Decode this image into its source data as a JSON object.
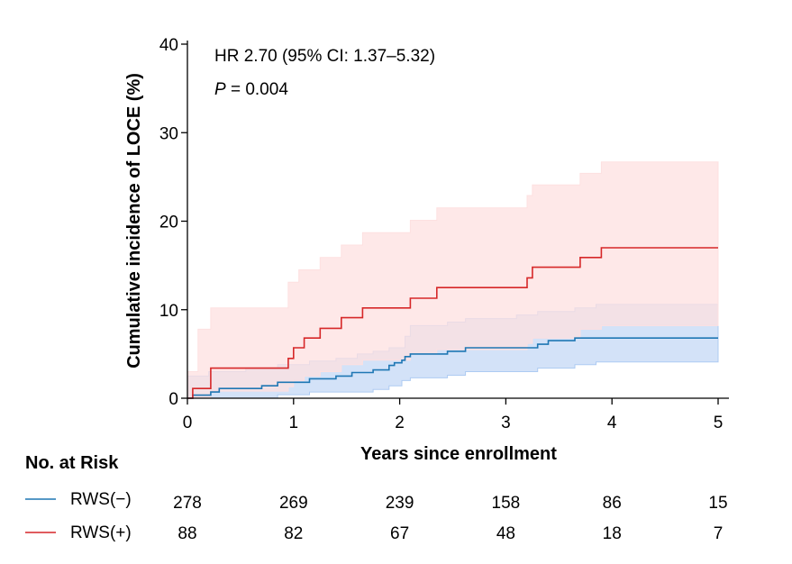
{
  "chart_data": {
    "type": "line",
    "title": "",
    "xlabel": "Years since enrollment",
    "ylabel": "Cumulative incidence of LOCE (%)",
    "xlim": [
      0,
      5
    ],
    "ylim": [
      0,
      40
    ],
    "x_ticks": [
      "0",
      "1",
      "2",
      "3",
      "4",
      "5"
    ],
    "y_ticks": [
      "0",
      "10",
      "20",
      "30",
      "40"
    ],
    "grid": false,
    "annotations": {
      "hr": "HR 2.70 (95% CI: 1.37–5.32)",
      "p_label": "P",
      "p_value": " = 0.004"
    },
    "series": [
      {
        "name": "RWS(−)",
        "color": "#1f77b4",
        "band_color": "#aecbf2",
        "steps": [
          [
            0,
            0
          ],
          [
            0.05,
            0.35
          ],
          [
            0.22,
            0.7
          ],
          [
            0.3,
            1.1
          ],
          [
            0.7,
            1.4
          ],
          [
            0.85,
            1.8
          ],
          [
            1.15,
            2.2
          ],
          [
            1.4,
            2.5
          ],
          [
            1.55,
            2.9
          ],
          [
            1.75,
            3.2
          ],
          [
            1.9,
            3.7
          ],
          [
            1.95,
            4.0
          ],
          [
            2.02,
            4.3
          ],
          [
            2.05,
            4.7
          ],
          [
            2.1,
            5.0
          ],
          [
            2.45,
            5.3
          ],
          [
            2.62,
            5.7
          ],
          [
            3.3,
            6.1
          ],
          [
            3.4,
            6.5
          ],
          [
            3.65,
            6.8
          ],
          [
            5.0,
            6.8
          ]
        ],
        "lower": [
          [
            0,
            0
          ],
          [
            0.7,
            0.0
          ],
          [
            0.85,
            0.4
          ],
          [
            1.15,
            0.7
          ],
          [
            1.75,
            1.0
          ],
          [
            1.9,
            1.4
          ],
          [
            2.02,
            2.0
          ],
          [
            2.1,
            2.3
          ],
          [
            2.45,
            2.6
          ],
          [
            2.62,
            3.0
          ],
          [
            3.3,
            3.4
          ],
          [
            3.65,
            3.8
          ],
          [
            3.85,
            4.1
          ],
          [
            5.0,
            4.1
          ]
        ],
        "upper": [
          [
            0,
            2.5
          ],
          [
            0.2,
            3.0
          ],
          [
            0.55,
            3.4
          ],
          [
            0.85,
            3.8
          ],
          [
            1.15,
            4.2
          ],
          [
            1.4,
            4.5
          ],
          [
            1.6,
            5.0
          ],
          [
            1.75,
            5.3
          ],
          [
            1.9,
            5.7
          ],
          [
            2.05,
            7.0
          ],
          [
            2.1,
            7.5
          ],
          [
            2.1,
            8.2
          ],
          [
            2.45,
            8.6
          ],
          [
            2.62,
            9.0
          ],
          [
            3.1,
            9.4
          ],
          [
            3.3,
            9.8
          ],
          [
            3.65,
            10.2
          ],
          [
            3.85,
            10.6
          ],
          [
            5.0,
            10.6
          ]
        ],
        "at_risk": [
          "278",
          "269",
          "239",
          "158",
          "86",
          "15"
        ]
      },
      {
        "name": "RWS(+)",
        "color": "#d62728",
        "band_color": "#fde0e0",
        "steps": [
          [
            0,
            0
          ],
          [
            0.05,
            1.1
          ],
          [
            0.22,
            3.4
          ],
          [
            0.95,
            4.5
          ],
          [
            1.0,
            5.7
          ],
          [
            1.1,
            6.8
          ],
          [
            1.25,
            7.9
          ],
          [
            1.45,
            9.1
          ],
          [
            1.65,
            10.2
          ],
          [
            2.1,
            11.3
          ],
          [
            2.35,
            12.5
          ],
          [
            3.2,
            13.6
          ],
          [
            3.25,
            14.8
          ],
          [
            3.7,
            15.9
          ],
          [
            3.9,
            17.0
          ],
          [
            5.0,
            17.0
          ]
        ],
        "lower": [
          [
            0,
            0
          ],
          [
            0.22,
            0.8
          ],
          [
            0.95,
            1.3
          ],
          [
            1.0,
            2.0
          ],
          [
            1.1,
            2.5
          ],
          [
            1.25,
            3.0
          ],
          [
            1.45,
            3.8
          ],
          [
            1.65,
            4.3
          ],
          [
            2.1,
            5.0
          ],
          [
            2.35,
            5.5
          ],
          [
            3.2,
            6.2
          ],
          [
            3.25,
            6.8
          ],
          [
            3.7,
            7.8
          ],
          [
            3.9,
            8.2
          ],
          [
            5.0,
            8.2
          ]
        ],
        "upper": [
          [
            0,
            3.0
          ],
          [
            0.1,
            7.8
          ],
          [
            0.22,
            10.2
          ],
          [
            0.95,
            13.1
          ],
          [
            1.05,
            14.5
          ],
          [
            1.25,
            15.9
          ],
          [
            1.45,
            17.3
          ],
          [
            1.65,
            18.7
          ],
          [
            2.1,
            20.1
          ],
          [
            2.35,
            21.5
          ],
          [
            3.2,
            22.9
          ],
          [
            3.25,
            24.1
          ],
          [
            3.7,
            25.4
          ],
          [
            3.9,
            26.7
          ],
          [
            5.0,
            26.7
          ]
        ],
        "at_risk": [
          "88",
          "82",
          "67",
          "48",
          "18",
          "7"
        ]
      }
    ]
  },
  "risk_table": {
    "title": "No. at Risk"
  }
}
